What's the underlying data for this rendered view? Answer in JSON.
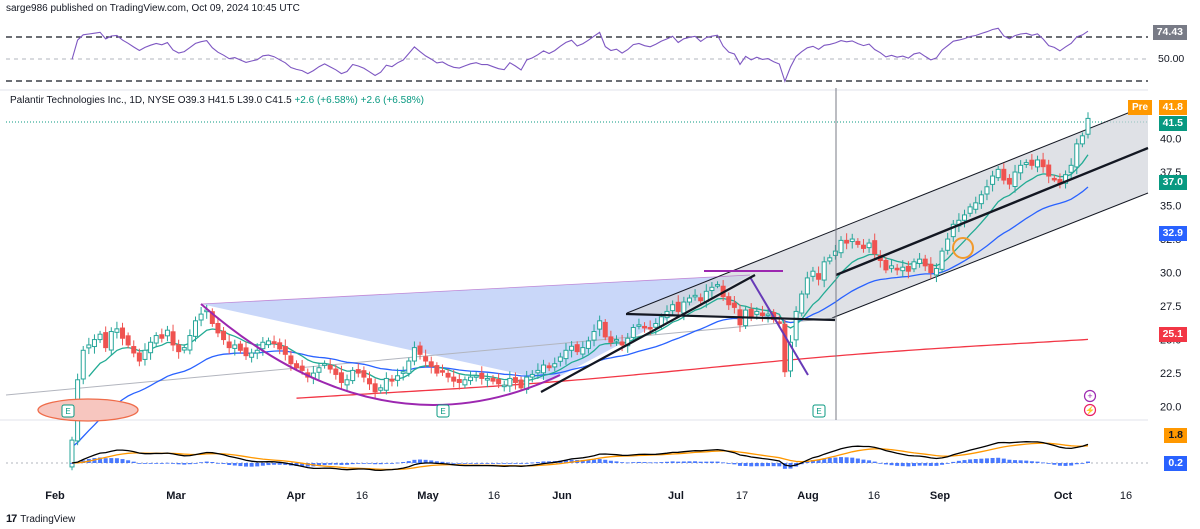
{
  "header": {
    "publisher": "sarge986 published on TradingView.com, Oct 09, 2024 10:45 UTC",
    "symbol": "Palantir Technologies Inc., 1D, NYSE",
    "ohlc": "O39.3 H41.5 L39.0 C41.5",
    "change": "+2.6 (+6.58%)   +2.6 (+6.58%)"
  },
  "footer": {
    "brand": "TradingView",
    "logo": "17"
  },
  "price_tags": {
    "rsi_value": "74.43",
    "rsi_level": "50.00",
    "pre_label": "Pre",
    "pre_value": "41.8",
    "last_value": "41.5",
    "ema_short": "37.0",
    "ema_mid": "32.9",
    "ema_long": "25.1",
    "macd_value": "1.8",
    "macd_hist": "0.2"
  },
  "colors": {
    "up": "#26a69a",
    "down": "#ef5350",
    "ema_short": "#22ab94",
    "ema_mid": "#2962ff",
    "ema_long": "#f23645",
    "cup": "#9c27b0",
    "channel": "#787b86",
    "rsi": "#7e57c2",
    "macd_line": "#000000",
    "macd_signal": "#ff9800",
    "macd_hist": "#2962ff"
  },
  "chart_data": {
    "type": "candlestick",
    "x_axis_labels": [
      "Feb",
      "Mar",
      "Apr",
      "16",
      "May",
      "16",
      "Jun",
      "Jul",
      "17",
      "Aug",
      "16",
      "Sep",
      "Oct",
      "16"
    ],
    "y_axis_labels": [
      "40.0",
      "37.5",
      "35.0",
      "32.5",
      "30.0",
      "27.5",
      "25.0",
      "22.5",
      "20.0"
    ],
    "ylim": [
      19.0,
      42.5
    ],
    "closes": [
      17.5,
      22.0,
      24.2,
      24.6,
      25.0,
      25.4,
      24.4,
      25.6,
      25.8,
      25.1,
      24.6,
      24.0,
      23.4,
      24.2,
      24.8,
      25.3,
      25.1,
      25.7,
      24.6,
      24.1,
      24.4,
      25.3,
      26.4,
      26.9,
      27.2,
      26.2,
      25.5,
      25.0,
      24.4,
      24.6,
      24.2,
      23.8,
      24.0,
      24.2,
      24.8,
      24.9,
      24.7,
      24.3,
      23.9,
      23.2,
      22.9,
      22.7,
      22.2,
      22.5,
      22.9,
      23.2,
      22.8,
      22.4,
      21.8,
      22.0,
      22.7,
      22.5,
      22.2,
      21.7,
      21.1,
      21.4,
      22.1,
      21.9,
      22.3,
      22.6,
      23.4,
      24.4,
      23.9,
      23.4,
      23.0,
      22.5,
      22.6,
      22.2,
      21.9,
      21.8,
      22.0,
      22.2,
      22.3,
      22.1,
      22.1,
      21.9,
      21.7,
      21.6,
      22.1,
      21.8,
      21.4,
      22.2,
      22.4,
      22.7,
      23.1,
      22.9,
      23.2,
      23.7,
      24.2,
      24.5,
      24.1,
      24.4,
      24.9,
      25.6,
      26.4,
      25.2,
      24.8,
      25.0,
      24.6,
      25.1,
      25.9,
      26.1,
      25.9,
      25.8,
      26.2,
      26.7,
      27.1,
      27.6,
      27.1,
      27.8,
      28.1,
      28.3,
      27.9,
      28.6,
      28.9,
      29.1,
      28.2,
      27.6,
      27.4,
      26.1,
      27.2,
      26.7,
      27.1,
      26.8,
      26.9,
      26.5,
      26.2,
      22.6,
      24.8,
      27.1,
      28.4,
      29.6,
      30.1,
      29.5,
      30.8,
      31.1,
      31.6,
      32.4,
      32.2,
      32.5,
      32.1,
      31.8,
      32.2,
      31.4,
      30.9,
      30.2,
      30.5,
      30.2,
      30.4,
      30.1,
      30.8,
      31.0,
      30.5,
      30.0,
      30.3,
      31.6,
      32.5,
      33.6,
      33.9,
      34.3,
      34.9,
      35.2,
      35.8,
      36.4,
      37.2,
      37.7,
      36.9,
      36.6,
      37.5,
      38.0,
      38.2,
      38.0,
      38.4,
      37.9,
      37.2,
      37.0,
      36.6,
      37.3,
      38.0,
      39.6,
      40.2,
      41.5
    ],
    "series": [
      {
        "name": "EMA short",
        "label": "37.0"
      },
      {
        "name": "EMA mid",
        "label": "32.9"
      },
      {
        "name": "EMA long",
        "label": "25.1"
      }
    ],
    "rsi_levels": [
      70,
      50,
      30
    ],
    "annotations": {
      "channel": "ascending channel",
      "cup": "cup pattern (purple arc)",
      "earnings_markers": [
        "E",
        "E",
        "E"
      ]
    }
  }
}
